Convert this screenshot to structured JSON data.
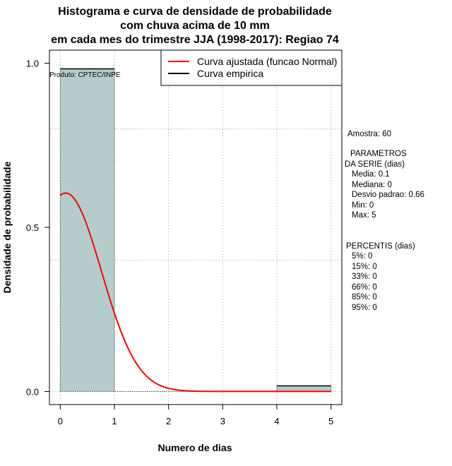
{
  "chart_data": {
    "type": "histogram",
    "title_lines": [
      "Histograma e curva de densidade de probabilidade",
      "com chuva acima de 10 mm",
      "em cada mes do trimestre JJA (1998-2017): Regiao 74"
    ],
    "xlabel": "Numero de dias",
    "ylabel": "Densidade de probabilidade",
    "xlim": [
      -0.2,
      5.2
    ],
    "ylim": [
      -0.04,
      1.04
    ],
    "x_ticks": [
      0,
      1,
      2,
      3,
      4,
      5
    ],
    "x_tick_labels": [
      "0",
      "1",
      "2",
      "3",
      "4",
      "5"
    ],
    "y_ticks": [
      0.0,
      0.5,
      1.0
    ],
    "y_tick_labels": [
      "0.0",
      "0.5",
      "1.0"
    ],
    "grid_x": [
      0,
      1,
      2,
      3,
      4,
      5
    ],
    "grid_y": [
      0.0,
      0.4,
      0.8
    ],
    "grid": true,
    "bins": [
      {
        "x0": 0,
        "x1": 1,
        "density": 0.983
      },
      {
        "x0": 1,
        "x1": 2,
        "density": 0.0
      },
      {
        "x0": 2,
        "x1": 3,
        "density": 0.0
      },
      {
        "x0": 3,
        "x1": 4,
        "density": 0.0
      },
      {
        "x0": 4,
        "x1": 5,
        "density": 0.017
      }
    ],
    "bar_color": "#b4cccc",
    "fitted_curve": {
      "name": "Curva ajustada (funcao Normal)",
      "color": "#ff0000",
      "mean": 0.1,
      "sd": 0.66,
      "x_range": [
        0,
        5
      ]
    },
    "empirical_curve": {
      "name": "Curva empirica",
      "color": "#000000"
    },
    "legend_position": "top-right",
    "product_label": "Produto: CPTEC/INPE"
  },
  "side_panel": {
    "sample": "Amostra: 60",
    "params_title_1": "PARAMETROS",
    "params_title_2": "DA SERIE (dias)",
    "params": [
      "Media: 0.1",
      "Mediana: 0",
      "Desvio padrao: 0.66",
      "Min: 0",
      "Max: 5"
    ],
    "percentis_title": "PERCENTIS (dias)",
    "percentis": [
      "5%: 0",
      "15%: 0",
      "33%: 0",
      "66%: 0",
      "85%: 0",
      "95%: 0"
    ]
  }
}
